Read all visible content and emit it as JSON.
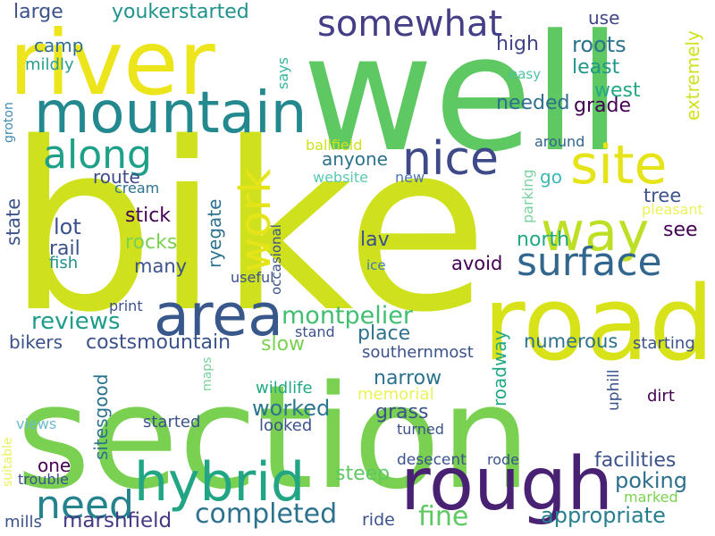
{
  "words": [
    {
      "text": "bike",
      "color": "#cfe11c",
      "vertical": false
    },
    {
      "text": "well",
      "color": "#5ec962",
      "vertical": false
    },
    {
      "text": "section",
      "color": "#7ad151",
      "vertical": false
    },
    {
      "text": "river",
      "color": "#ede51b",
      "vertical": false
    },
    {
      "text": "road",
      "color": "#d8e219",
      "vertical": false
    },
    {
      "text": "rough",
      "color": "#482173",
      "vertical": false
    },
    {
      "text": "area",
      "color": "#38588c",
      "vertical": false
    },
    {
      "text": "mountain",
      "color": "#23898e",
      "vertical": false
    },
    {
      "text": "hybrid",
      "color": "#21a585",
      "vertical": false
    },
    {
      "text": "site",
      "color": "#e5e419",
      "vertical": false
    },
    {
      "text": "way",
      "color": "#bddf26",
      "vertical": false
    },
    {
      "text": "nice",
      "color": "#3e4989",
      "vertical": false
    },
    {
      "text": "somewhat",
      "color": "#433e85",
      "vertical": false
    },
    {
      "text": "along",
      "color": "#1fa088",
      "vertical": false
    },
    {
      "text": "work",
      "color": "#e5e419",
      "vertical": true
    },
    {
      "text": "surface",
      "color": "#31678e",
      "vertical": false
    },
    {
      "text": "need",
      "color": "#25838e",
      "vertical": false
    },
    {
      "text": "completed",
      "color": "#2c728e",
      "vertical": false
    },
    {
      "text": "montpelier",
      "color": "#42be71",
      "vertical": false
    },
    {
      "text": "fine",
      "color": "#5ec962",
      "vertical": false
    },
    {
      "text": "reviews",
      "color": "#1e9c89",
      "vertical": false
    },
    {
      "text": "worked",
      "color": "#2a768e",
      "vertical": false
    },
    {
      "text": "appropriate",
      "color": "#277f8e",
      "vertical": false
    },
    {
      "text": "facilities",
      "color": "#3b528b",
      "vertical": false
    },
    {
      "text": "poking",
      "color": "#2d708e",
      "vertical": false
    },
    {
      "text": "costsmountain",
      "color": "#3b528b",
      "vertical": false
    },
    {
      "text": "marshfield",
      "color": "#443983",
      "vertical": false
    },
    {
      "text": "youkerstarted",
      "color": "#20928c",
      "vertical": false
    },
    {
      "text": "large",
      "color": "#3b528b",
      "vertical": false
    },
    {
      "text": "roots",
      "color": "#2c728e",
      "vertical": false
    },
    {
      "text": "least",
      "color": "#1f988b",
      "vertical": false
    },
    {
      "text": "high",
      "color": "#414487",
      "vertical": false
    },
    {
      "text": "use",
      "color": "#404588",
      "vertical": false
    },
    {
      "text": "west",
      "color": "#22a884",
      "vertical": false
    },
    {
      "text": "grade",
      "color": "#440154",
      "vertical": false
    },
    {
      "text": "needed",
      "color": "#2e6e8e",
      "vertical": false
    },
    {
      "text": "extremely",
      "color": "#d0e11c",
      "vertical": true
    },
    {
      "text": "camp",
      "color": "#2e6e8e",
      "vertical": false
    },
    {
      "text": "mildly",
      "color": "#2a9d8e",
      "vertical": false
    },
    {
      "text": "says",
      "color": "#38b6a0",
      "vertical": true
    },
    {
      "text": "easy",
      "color": "#4fc0a6",
      "vertical": false
    },
    {
      "text": "around",
      "color": "#33638d",
      "vertical": false
    },
    {
      "text": "groton",
      "color": "#3e8bb0",
      "vertical": true
    },
    {
      "text": "ballfield",
      "color": "#cfe11c",
      "vertical": false
    },
    {
      "text": "anyone",
      "color": "#2c728e",
      "vertical": false
    },
    {
      "text": "website",
      "color": "#5cc8b4",
      "vertical": false
    },
    {
      "text": "new",
      "color": "#4e73b8",
      "vertical": false
    },
    {
      "text": "go",
      "color": "#3bb8b6",
      "vertical": false
    },
    {
      "text": "parking",
      "color": "#7ad19d",
      "vertical": true
    },
    {
      "text": "route",
      "color": "#3e4989",
      "vertical": false
    },
    {
      "text": "cream",
      "color": "#2c728e",
      "vertical": false
    },
    {
      "text": "tree",
      "color": "#3b528b",
      "vertical": false
    },
    {
      "text": "pleasant",
      "color": "#eaf25a",
      "vertical": false
    },
    {
      "text": "stick",
      "color": "#440154",
      "vertical": false
    },
    {
      "text": "lot",
      "color": "#3b528b",
      "vertical": false
    },
    {
      "text": "state",
      "color": "#3b528b",
      "vertical": true
    },
    {
      "text": "ryegate",
      "color": "#2c728e",
      "vertical": true
    },
    {
      "text": "see",
      "color": "#440154",
      "vertical": false
    },
    {
      "text": "rocks",
      "color": "#7ad151",
      "vertical": false
    },
    {
      "text": "rail",
      "color": "#3b528b",
      "vertical": false
    },
    {
      "text": "lav",
      "color": "#3b528b",
      "vertical": false
    },
    {
      "text": "north",
      "color": "#22a884",
      "vertical": false
    },
    {
      "text": "fish",
      "color": "#21908d",
      "vertical": false
    },
    {
      "text": "many",
      "color": "#3b528b",
      "vertical": false
    },
    {
      "text": "avoid",
      "color": "#440154",
      "vertical": false
    },
    {
      "text": "occasional",
      "color": "#3b528b",
      "vertical": true
    },
    {
      "text": "ice",
      "color": "#3b7cb8",
      "vertical": false
    },
    {
      "text": "useful",
      "color": "#3b528b",
      "vertical": false
    },
    {
      "text": "print",
      "color": "#3b528b",
      "vertical": false
    },
    {
      "text": "place",
      "color": "#2c728e",
      "vertical": false
    },
    {
      "text": "numerous",
      "color": "#2c728e",
      "vertical": false
    },
    {
      "text": "stand",
      "color": "#3b528b",
      "vertical": false
    },
    {
      "text": "slow",
      "color": "#7ad151",
      "vertical": false
    },
    {
      "text": "bikers",
      "color": "#3b528b",
      "vertical": false
    },
    {
      "text": "roadway",
      "color": "#22a884",
      "vertical": true
    },
    {
      "text": "starting",
      "color": "#3b528b",
      "vertical": false
    },
    {
      "text": "southernmost",
      "color": "#3b528b",
      "vertical": false
    },
    {
      "text": "maps",
      "color": "#7ad19d",
      "vertical": true
    },
    {
      "text": "narrow",
      "color": "#2c728e",
      "vertical": false
    },
    {
      "text": "uphill",
      "color": "#3b528b",
      "vertical": true
    },
    {
      "text": "wildlife",
      "color": "#22a884",
      "vertical": false
    },
    {
      "text": "memorial",
      "color": "#eaf25a",
      "vertical": false
    },
    {
      "text": "dirt",
      "color": "#440154",
      "vertical": false
    },
    {
      "text": "sitesgood",
      "color": "#2c728e",
      "vertical": true
    },
    {
      "text": "grass",
      "color": "#3b528b",
      "vertical": false
    },
    {
      "text": "started",
      "color": "#3b528b",
      "vertical": false
    },
    {
      "text": "looked",
      "color": "#3b528b",
      "vertical": false
    },
    {
      "text": "views",
      "color": "#6ebacb",
      "vertical": false
    },
    {
      "text": "turned",
      "color": "#3b528b",
      "vertical": false
    },
    {
      "text": "suitable",
      "color": "#eaf25a",
      "vertical": true
    },
    {
      "text": "one",
      "color": "#440154",
      "vertical": false
    },
    {
      "text": "steep",
      "color": "#5ec962",
      "vertical": false
    },
    {
      "text": "desecent",
      "color": "#3b528b",
      "vertical": false
    },
    {
      "text": "rode",
      "color": "#3b528b",
      "vertical": false
    },
    {
      "text": "trouble",
      "color": "#3b528b",
      "vertical": false
    },
    {
      "text": "marked",
      "color": "#7ad151",
      "vertical": false
    },
    {
      "text": "mills",
      "color": "#3b528b",
      "vertical": false
    },
    {
      "text": "ride",
      "color": "#3b528b",
      "vertical": false
    }
  ]
}
